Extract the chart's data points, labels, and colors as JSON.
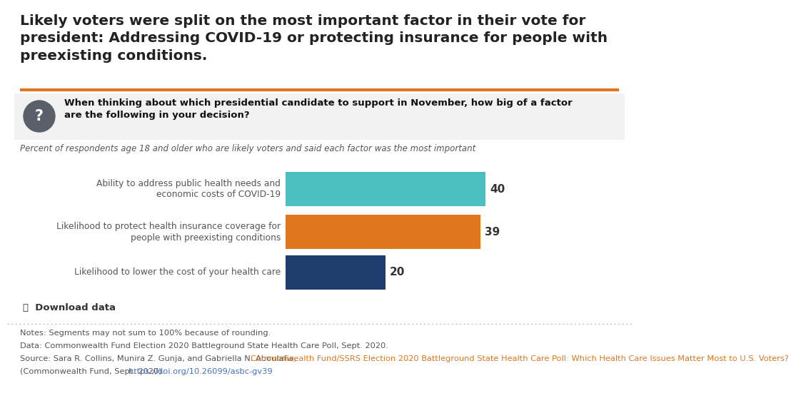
{
  "title": "Likely voters were split on the most important factor in their vote for\npresident: Addressing COVID-19 or protecting insurance for people with\npreexisting conditions.",
  "question": "When thinking about which presidential candidate to support in November, how big of a factor\nare the following in your decision?",
  "subtitle": "Percent of respondents age 18 and older who are likely voters and said each factor was the most important",
  "categories": [
    "Ability to address public health needs and\neconomic costs of COVID-19",
    "Likelihood to protect health insurance coverage for\npeople with preexisting conditions",
    "Likelihood to lower the cost of your health care"
  ],
  "values": [
    40,
    39,
    20
  ],
  "colors": [
    "#4bbfbf",
    "#e0771e",
    "#1e3d6e"
  ],
  "bar_height": 0.55,
  "xlim_max": 52,
  "notes_line1": "Notes: Segments may not sum to 100% because of rounding.",
  "notes_line2": "Data: Commonwealth Fund Election 2020 Battleground State Health Care Poll, Sept. 2020.",
  "source_plain": "Source: Sara R. Collins, Munira Z. Gunja, and Gabriella N. Aboulafia, ",
  "source_link_text": "Commonwealth Fund/SSRS Election 2020 Battleground State Health Care Poll: Which Health Care Issues Matter Most to U.S. Voters?",
  "source_end_plain": "(Commonwealth Fund, Sept. 2020). ",
  "source_link_url": "https://doi.org/10.26099/asbc-gv39",
  "download_text": "Download data",
  "orange_line_color": "#e0771e",
  "title_color": "#222222",
  "text_color": "#444444",
  "link_color": "#e0771e",
  "url_color": "#4472c4"
}
